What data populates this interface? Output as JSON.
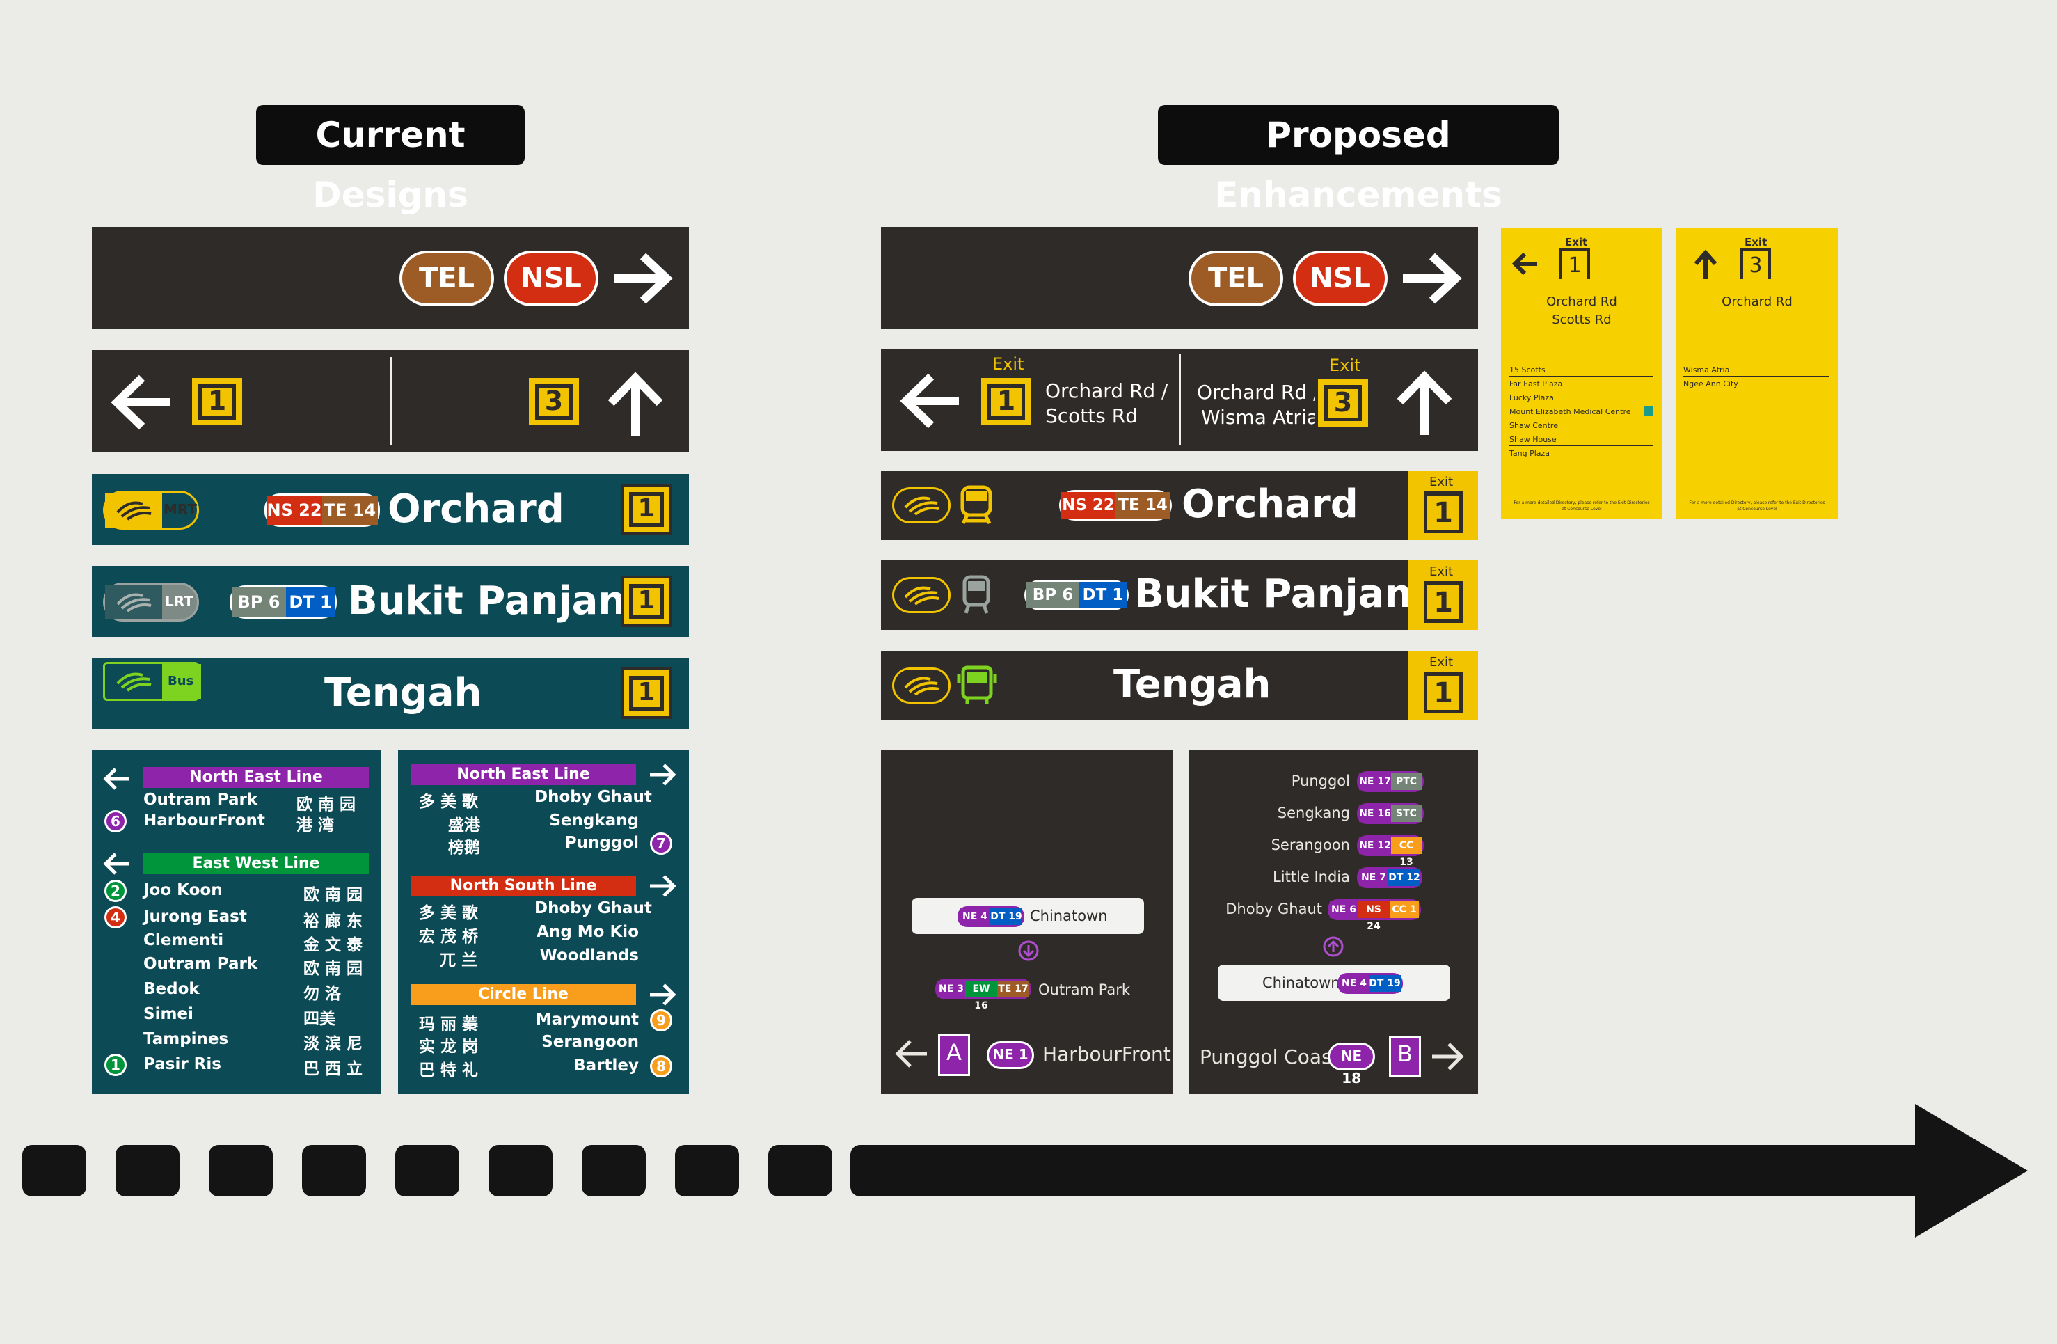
{
  "headings": {
    "current": "Current Designs",
    "proposed": "Proposed Enhancements"
  },
  "current": {
    "lines_sign": {
      "tel": "TEL",
      "nsl": "NSL"
    },
    "exit_sign": {
      "left_exit": "1",
      "right_exit": "3"
    },
    "orchard": {
      "mode": "MRT",
      "codes": [
        "NS 22",
        "TE 14"
      ],
      "name": "Orchard",
      "exit": "1"
    },
    "bukit": {
      "mode": "LRT",
      "codes": [
        "BP 6",
        "DT 1"
      ],
      "name": "Bukit Panjang",
      "exit": "1"
    },
    "tengah": {
      "mode": "Bus",
      "name": "Tengah",
      "exit": "1"
    },
    "left_panel": {
      "nel": {
        "title": "North East Line",
        "rows": [
          {
            "en": "Outram Park",
            "zh": "欧 南 园"
          },
          {
            "en": "HarbourFront",
            "zh": "港 湾",
            "num": "6"
          }
        ]
      },
      "ewl": {
        "title": "East West Line",
        "rows": [
          {
            "en": "Joo Koon",
            "zh": "欧 南 园",
            "num": "2"
          },
          {
            "en": "Jurong East",
            "zh": "裕 廊 东",
            "num": "4"
          },
          {
            "en": "Clementi",
            "zh": "金 文 泰"
          },
          {
            "en": "Outram Park",
            "zh": "欧 南 园"
          },
          {
            "en": "Bedok",
            "zh": "勿 洛"
          },
          {
            "en": "Simei",
            "zh": "四美"
          },
          {
            "en": "Tampines",
            "zh": "淡 滨 尼"
          },
          {
            "en": "Pasir Ris",
            "zh": "巴 西 立",
            "num": "1"
          }
        ]
      }
    },
    "right_panel": {
      "nel": {
        "title": "North East Line",
        "rows": [
          {
            "zh": "多 美 歌",
            "en": "Dhoby Ghaut"
          },
          {
            "zh": "盛港",
            "en": "Sengkang"
          },
          {
            "zh": "榜鹅",
            "en": "Punggol",
            "num": "7"
          }
        ]
      },
      "nsl": {
        "title": "North South Line",
        "rows": [
          {
            "zh": "多 美 歌",
            "en": "Dhoby Ghaut"
          },
          {
            "zh": "宏 茂 桥",
            "en": "Ang Mo Kio"
          },
          {
            "zh": "兀 兰",
            "en": "Woodlands"
          }
        ]
      },
      "ccl": {
        "title": "Circle Line",
        "rows": [
          {
            "zh": "玛 丽 蓁",
            "en": "Marymount",
            "num": "9"
          },
          {
            "zh": "实 龙 岗",
            "en": "Serangoon"
          },
          {
            "zh": "巴 特 礼",
            "en": "Bartley",
            "num": "8"
          }
        ]
      }
    }
  },
  "proposed": {
    "lines_sign": {
      "tel": "TEL",
      "nsl": "NSL"
    },
    "exit_sign": {
      "exit_label": "Exit",
      "left_exit": "1",
      "left_dest": "Orchard Rd /\nScotts Rd",
      "left_dest_1": "Orchard Rd /",
      "left_dest_2": "Scotts Rd",
      "right_exit": "3",
      "right_dest_1": "Orchard Rd /",
      "right_dest_2": "Wisma Atria"
    },
    "orchard": {
      "codes": [
        "NS 22",
        "TE 14"
      ],
      "name": "Orchard",
      "exit_label": "Exit",
      "exit": "1"
    },
    "bukit": {
      "codes": [
        "BP 6",
        "DT 1"
      ],
      "name": "Bukit Panjang",
      "exit_label": "Exit",
      "exit": "1"
    },
    "tengah": {
      "name": "Tengah",
      "exit_label": "Exit",
      "exit": "1"
    },
    "route_left": {
      "current": {
        "codes": [
          "NE 4",
          "DT 19"
        ],
        "name": "Chinatown"
      },
      "next": {
        "codes": [
          "NE 3",
          "EW 16",
          "TE 17"
        ],
        "name": "Outram Park"
      },
      "end": {
        "platform": "A",
        "code": "NE 1",
        "name": "HarbourFront"
      }
    },
    "route_right": {
      "stops": [
        {
          "name": "Punggol",
          "codes": [
            "NE 17",
            "PTC"
          ]
        },
        {
          "name": "Sengkang",
          "codes": [
            "NE 16",
            "STC"
          ]
        },
        {
          "name": "Serangoon",
          "codes": [
            "NE 12",
            "CC 13"
          ]
        },
        {
          "name": "Little India",
          "codes": [
            "NE 7",
            "DT 12"
          ]
        },
        {
          "name": "Dhoby Ghaut",
          "codes": [
            "NE 6",
            "NS 24",
            "CC 1"
          ]
        }
      ],
      "current": {
        "name": "Chinatown",
        "codes": [
          "NE 4",
          "DT 19"
        ]
      },
      "end": {
        "name": "Punggol Coast",
        "code": "NE 18",
        "platform": "B"
      }
    },
    "card1": {
      "exit_label": "Exit",
      "exit": "1",
      "dest_1": "Orchard Rd",
      "dest_2": "Scotts Rd",
      "items": [
        "15 Scotts",
        "Far East Plaza",
        "Lucky Plaza",
        "Mount Elizabeth Medical Centre",
        "Shaw Centre",
        "Shaw House",
        "Tang Plaza"
      ],
      "footer_1": "For a more detailed Directory, please refer to the Exit Directories",
      "footer_2": "at Concourse Level"
    },
    "card2": {
      "exit_label": "Exit",
      "exit": "3",
      "dest_1": "Orchard Rd",
      "items": [
        "Wisma Atria",
        "Ngee Ann City"
      ],
      "footer_1": "For a more detailed Directory, please refer to the Exit Directories",
      "footer_2": "at Concourse Level"
    }
  },
  "colors": {
    "nel": "#8e24aa",
    "ewl": "#00953b",
    "nsl": "#d42e12",
    "ccl": "#f99d1c",
    "dtl": "#005ec4",
    "tel": "#9d5b25",
    "bpl": "#748477",
    "sign_dark": "#2e2b28",
    "sign_teal": "#0c4a55",
    "exit_yellow": "#f2c400"
  }
}
